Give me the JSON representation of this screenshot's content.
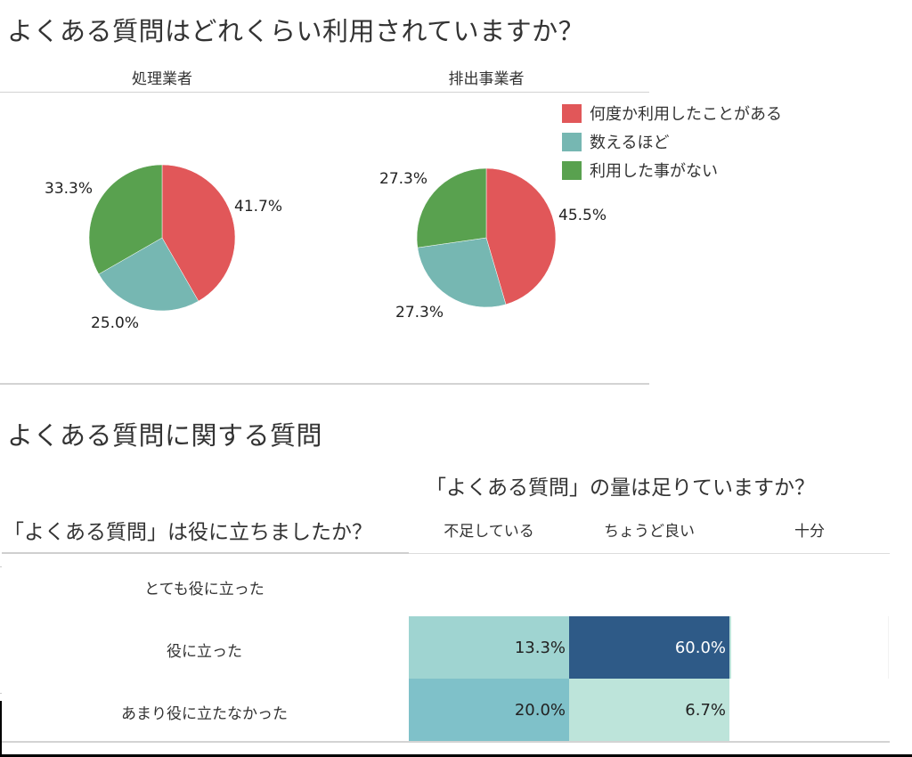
{
  "header": {
    "title": "よくある質問はどれくらい利用されていますか？"
  },
  "panes": [
    {
      "label": "処理業者"
    },
    {
      "label": "排出事業者"
    }
  ],
  "legend": {
    "items": [
      {
        "label": "何度か利用したことがある",
        "color": "#e15759"
      },
      {
        "label": "数えるほど",
        "color": "#76b7b2"
      },
      {
        "label": "利用した事がない",
        "color": "#59a14f"
      }
    ]
  },
  "section2": {
    "title": "よくある質問に関する質問",
    "col_group_title": "「よくある質問」の量は足りていますか？",
    "row_group_title": "「よくある質問」は役に立ちましたか？",
    "columns": [
      "不足している",
      "ちょうど良い",
      "十分"
    ],
    "rows": [
      "とても役に立った",
      "役に立った",
      "あまり役に立たなかった"
    ],
    "cells": [
      {
        "row": 1,
        "col": 0,
        "label": "13.3%",
        "bg": "#9fd4d1",
        "fg": "#222222"
      },
      {
        "row": 1,
        "col": 1,
        "label": "60.0%",
        "bg": "#2e5a87",
        "fg": "#ffffff"
      },
      {
        "row": 2,
        "col": 0,
        "label": "20.0%",
        "bg": "#7fc1c9",
        "fg": "#222222"
      },
      {
        "row": 2,
        "col": 1,
        "label": "6.7%",
        "bg": "#bde4da",
        "fg": "#222222"
      }
    ]
  },
  "chart_data": [
    {
      "type": "pie",
      "title": "処理業者",
      "categories": [
        "何度か利用したことがある",
        "数えるほど",
        "利用した事がない"
      ],
      "values": [
        41.7,
        25.0,
        33.3
      ],
      "labels": [
        "41.7%",
        "25.0%",
        "33.3%"
      ],
      "colors": [
        "#e15759",
        "#76b7b2",
        "#59a14f"
      ],
      "legend_position": "right"
    },
    {
      "type": "pie",
      "title": "排出事業者",
      "categories": [
        "何度か利用したことがある",
        "数えるほど",
        "利用した事がない"
      ],
      "values": [
        45.5,
        27.3,
        27.3
      ],
      "labels": [
        "45.5%",
        "27.3%",
        "27.3%"
      ],
      "colors": [
        "#e15759",
        "#76b7b2",
        "#59a14f"
      ],
      "legend_position": "right"
    },
    {
      "type": "heatmap",
      "title": "よくある質問に関する質問",
      "xlabel": "「よくある質問」の量は足りていますか？",
      "ylabel": "「よくある質問」は役に立ちましたか？",
      "x": [
        "不足している",
        "ちょうど良い",
        "十分"
      ],
      "y": [
        "とても役に立った",
        "役に立った",
        "あまり役に立たなかった"
      ],
      "values": [
        [
          null,
          null,
          null
        ],
        [
          13.3,
          60.0,
          null
        ],
        [
          20.0,
          6.7,
          null
        ]
      ]
    }
  ]
}
